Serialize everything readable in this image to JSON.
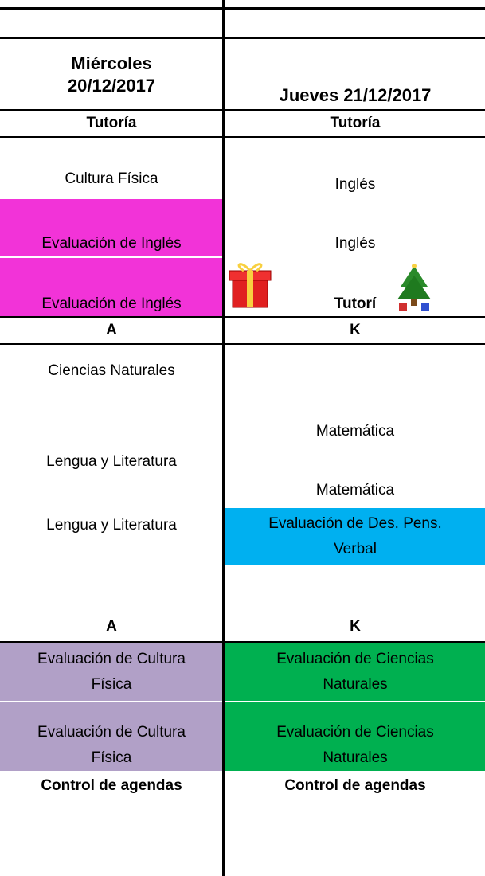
{
  "header": {
    "left": "Miércoles 20/12/2017",
    "right": "Jueves 21/12/2017"
  },
  "rows": [
    [
      "Tutoría",
      "Tutoría"
    ],
    [
      "Cultura Física",
      "Inglés"
    ],
    [
      "Evaluación de Inglés",
      "Inglés"
    ],
    [
      "Evaluación de Inglés",
      "Tutorí"
    ],
    [
      "A",
      "K"
    ],
    [
      "Ciencias Naturales",
      "Matemática"
    ],
    [
      "Lengua y Literatura",
      "Matemática"
    ],
    [
      "Lengua y Literatura",
      "Evaluación de Des. Pens. Verbal"
    ],
    [
      "A",
      "K"
    ],
    [
      "Evaluación de Cultura Física",
      "Evaluación de Ciencias Naturales"
    ],
    [
      "Evaluación de Cultura Física",
      "Evaluación de Ciencias Naturales"
    ],
    [
      "Control de agendas",
      "Control de agendas"
    ]
  ]
}
